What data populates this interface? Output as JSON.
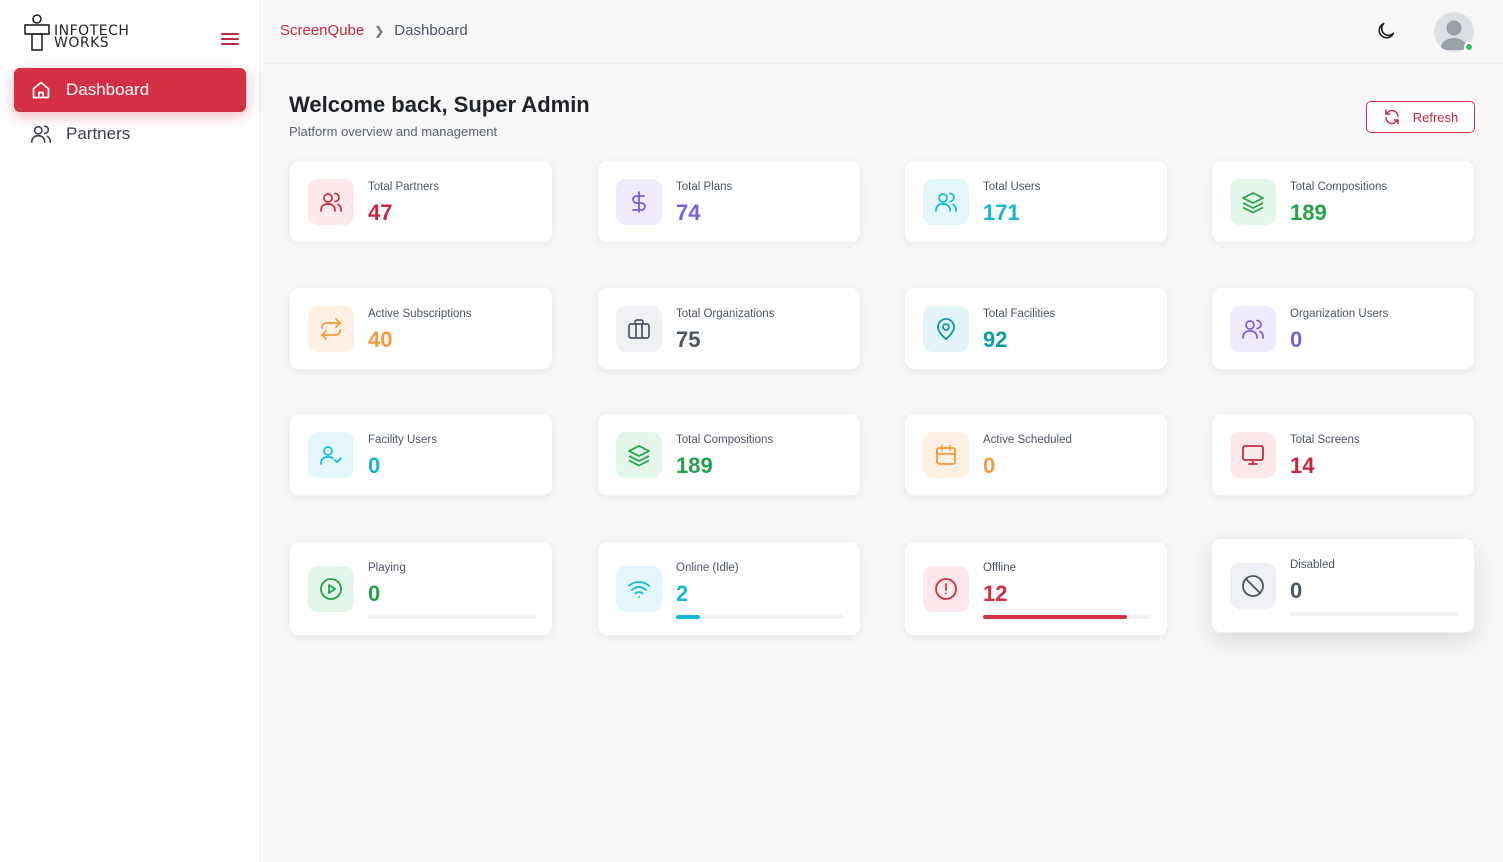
{
  "brand": {
    "line1": "INFOTECH",
    "line2": "WORKS"
  },
  "sidebar": {
    "items": [
      {
        "label": "Dashboard",
        "icon": "home-icon",
        "active": true
      },
      {
        "label": "Partners",
        "icon": "users-icon",
        "active": false
      }
    ]
  },
  "header": {
    "breadcrumb": {
      "home": "ScreenQube",
      "current": "Dashboard"
    },
    "theme_icon": "moon-icon",
    "user_status": "online"
  },
  "main": {
    "title": "Welcome back, Super Admin",
    "subtitle": "Platform overview and management",
    "refresh_label": "Refresh"
  },
  "stats": [
    {
      "label": "Total Partners",
      "value": "47",
      "icon": "users-icon",
      "color": "#c62842",
      "bg": "#fde8ec"
    },
    {
      "label": "Total Plans",
      "value": "74",
      "icon": "dollar-icon",
      "color": "#7c5ce0",
      "bg": "#efeafd"
    },
    {
      "label": "Total Users",
      "value": "171",
      "icon": "users-icon",
      "color": "#12b8d6",
      "bg": "#e3f7fb"
    },
    {
      "label": "Total Compositions",
      "value": "189",
      "icon": "layers-icon",
      "color": "#22a34a",
      "bg": "#e4f6ea"
    },
    {
      "label": "Active Subscriptions",
      "value": "40",
      "icon": "repeat-icon",
      "color": "#f59a3c",
      "bg": "#fef1e4"
    },
    {
      "label": "Total Organizations",
      "value": "75",
      "icon": "briefcase-icon",
      "color": "#4b5563",
      "bg": "#eef0f3"
    },
    {
      "label": "Total Facilities",
      "value": "92",
      "icon": "map-pin-icon",
      "color": "#0f9aa8",
      "bg": "#e2f4f6"
    },
    {
      "label": "Organization Users",
      "value": "0",
      "icon": "users-icon",
      "color": "#7c5ce0",
      "bg": "#efeafd"
    },
    {
      "label": "Facility Users",
      "value": "0",
      "icon": "user-check-icon",
      "color": "#12b8d6",
      "bg": "#e3f7fb"
    },
    {
      "label": "Total Compositions",
      "value": "189",
      "icon": "layers-icon",
      "color": "#22a34a",
      "bg": "#e4f6ea"
    },
    {
      "label": "Active Scheduled",
      "value": "0",
      "icon": "calendar-icon",
      "color": "#f59a3c",
      "bg": "#fef1e4"
    },
    {
      "label": "Total Screens",
      "value": "14",
      "icon": "monitor-icon",
      "color": "#c62842",
      "bg": "#fde8ec"
    }
  ],
  "screen_status": [
    {
      "label": "Playing",
      "value": "0",
      "icon": "play-circle-icon",
      "color": "#22a34a",
      "bg": "#e4f6ea",
      "progress": 0
    },
    {
      "label": "Online (Idle)",
      "value": "2",
      "icon": "wifi-icon",
      "color": "#12b8d6",
      "bg": "#e3f7fb",
      "progress": 0.14
    },
    {
      "label": "Offline",
      "value": "12",
      "icon": "alert-circle-icon",
      "color": "#d32f45",
      "bg": "#fde8ec",
      "progress": 0.86
    },
    {
      "label": "Disabled",
      "value": "0",
      "icon": "ban-icon",
      "color": "#4b5563",
      "bg": "#eef0f3",
      "progress": 0
    }
  ]
}
